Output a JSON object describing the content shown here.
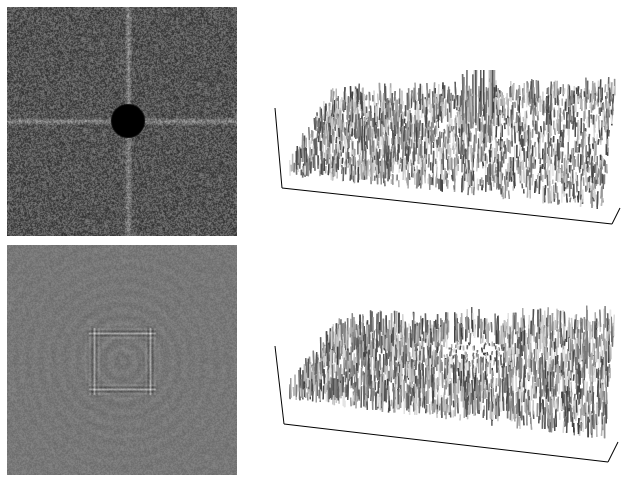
{
  "figure": {
    "panels": [
      {
        "id": "spectrum-masked",
        "kind": "noise-image-with-cross-and-disk-mask"
      },
      {
        "id": "spectrum-surface",
        "kind": "3d-surface-with-central-spikes"
      },
      {
        "id": "filtered-image",
        "kind": "grey-image-with-ringing-square"
      },
      {
        "id": "filtered-surface",
        "kind": "3d-surface-with-central-depression"
      }
    ],
    "colors": {
      "background": "#ffffff",
      "axis": "#000000",
      "mask": "#000000",
      "grey": "#7f7f7f"
    }
  }
}
